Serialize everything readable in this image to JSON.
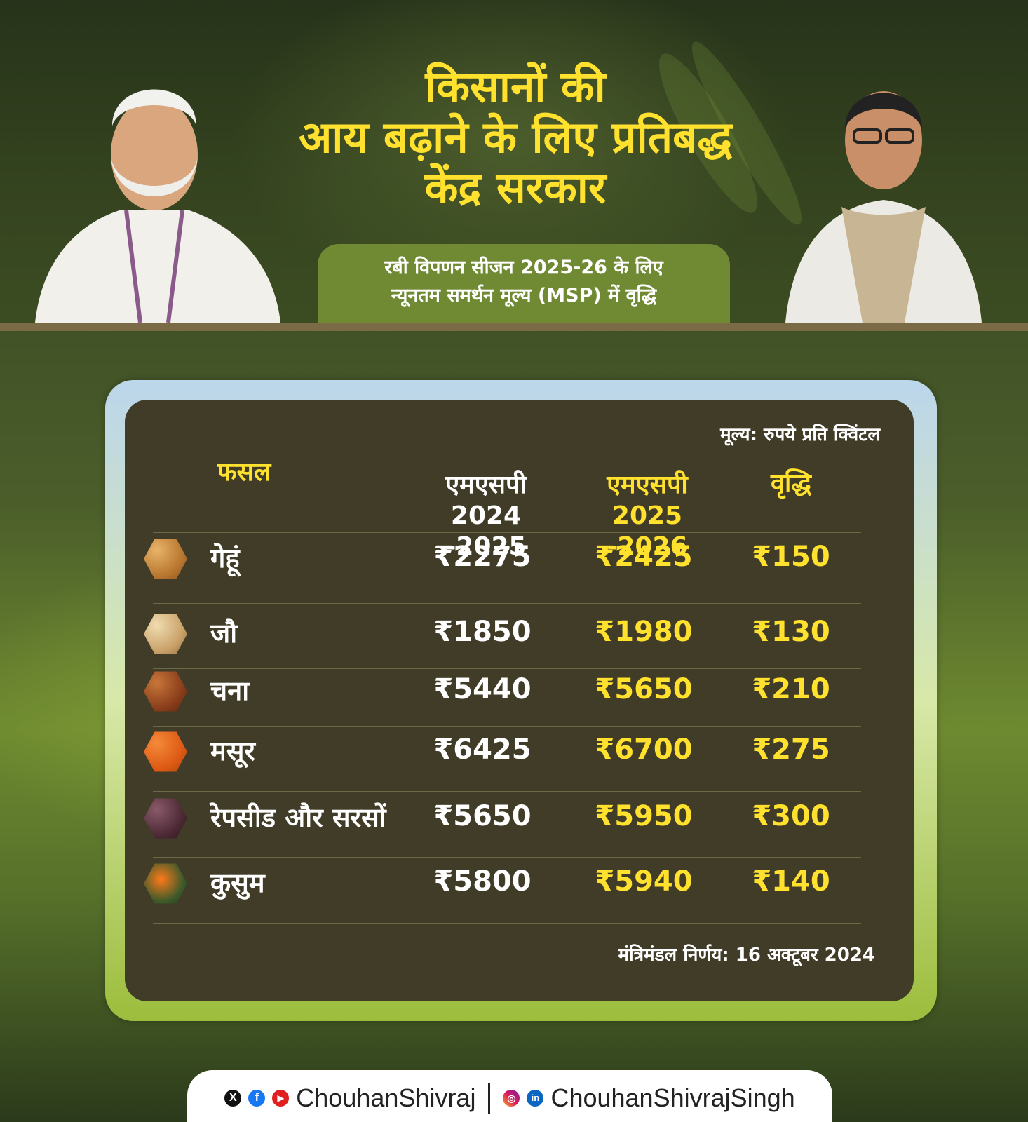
{
  "header": {
    "title_lines": [
      "किसानों की",
      "आय बढ़ाने के लिए प्रतिबद्ध",
      "केंद्र सरकार"
    ],
    "subtitle_lines": [
      "रबी विपणन सीजन 2025-26 के लिए",
      "न्यूनतम समर्थन मूल्य (MSP) में वृद्धि"
    ]
  },
  "table": {
    "unit_note": "मूल्य: रुपये प्रति क्विंटल",
    "headers": {
      "crop": "फसल",
      "msp_old_label": "एमएसपी",
      "msp_old_year": "2024 -2025",
      "msp_new_label": "एमएसपी",
      "msp_new_year": "2025 -2026",
      "increase": "वृद्धि"
    },
    "rows": [
      {
        "crop": "गेहूं",
        "msp_old": "₹2275",
        "msp_new": "₹2425",
        "increase": "₹150",
        "icon": "wheat-grain-icon"
      },
      {
        "crop": "जौ",
        "msp_old": "₹1850",
        "msp_new": "₹1980",
        "increase": "₹130",
        "icon": "barley-grain-icon"
      },
      {
        "crop": "चना",
        "msp_old": "₹5440",
        "msp_new": "₹5650",
        "increase": "₹210",
        "icon": "gram-icon"
      },
      {
        "crop": "मसूर",
        "msp_old": "₹6425",
        "msp_new": "₹6700",
        "increase": "₹275",
        "icon": "lentil-icon"
      },
      {
        "crop": "रेपसीड और सरसों",
        "msp_old": "₹5650",
        "msp_new": "₹5950",
        "increase": "₹300",
        "icon": "mustard-seed-icon"
      },
      {
        "crop": "कुसुम",
        "msp_old": "₹5800",
        "msp_new": "₹5940",
        "increase": "₹140",
        "icon": "safflower-icon"
      }
    ],
    "decision_note": "मंत्रिमंडल निर्णय: 16 अक्टूबर 2024"
  },
  "footer": {
    "handle_1": "ChouhanShivraj",
    "handle_2": "ChouhanShivrajSingh"
  },
  "colors": {
    "accent_yellow": "#ffe12e",
    "card_bg": "#403c28",
    "subtitle_bg": "#6f8a33"
  }
}
